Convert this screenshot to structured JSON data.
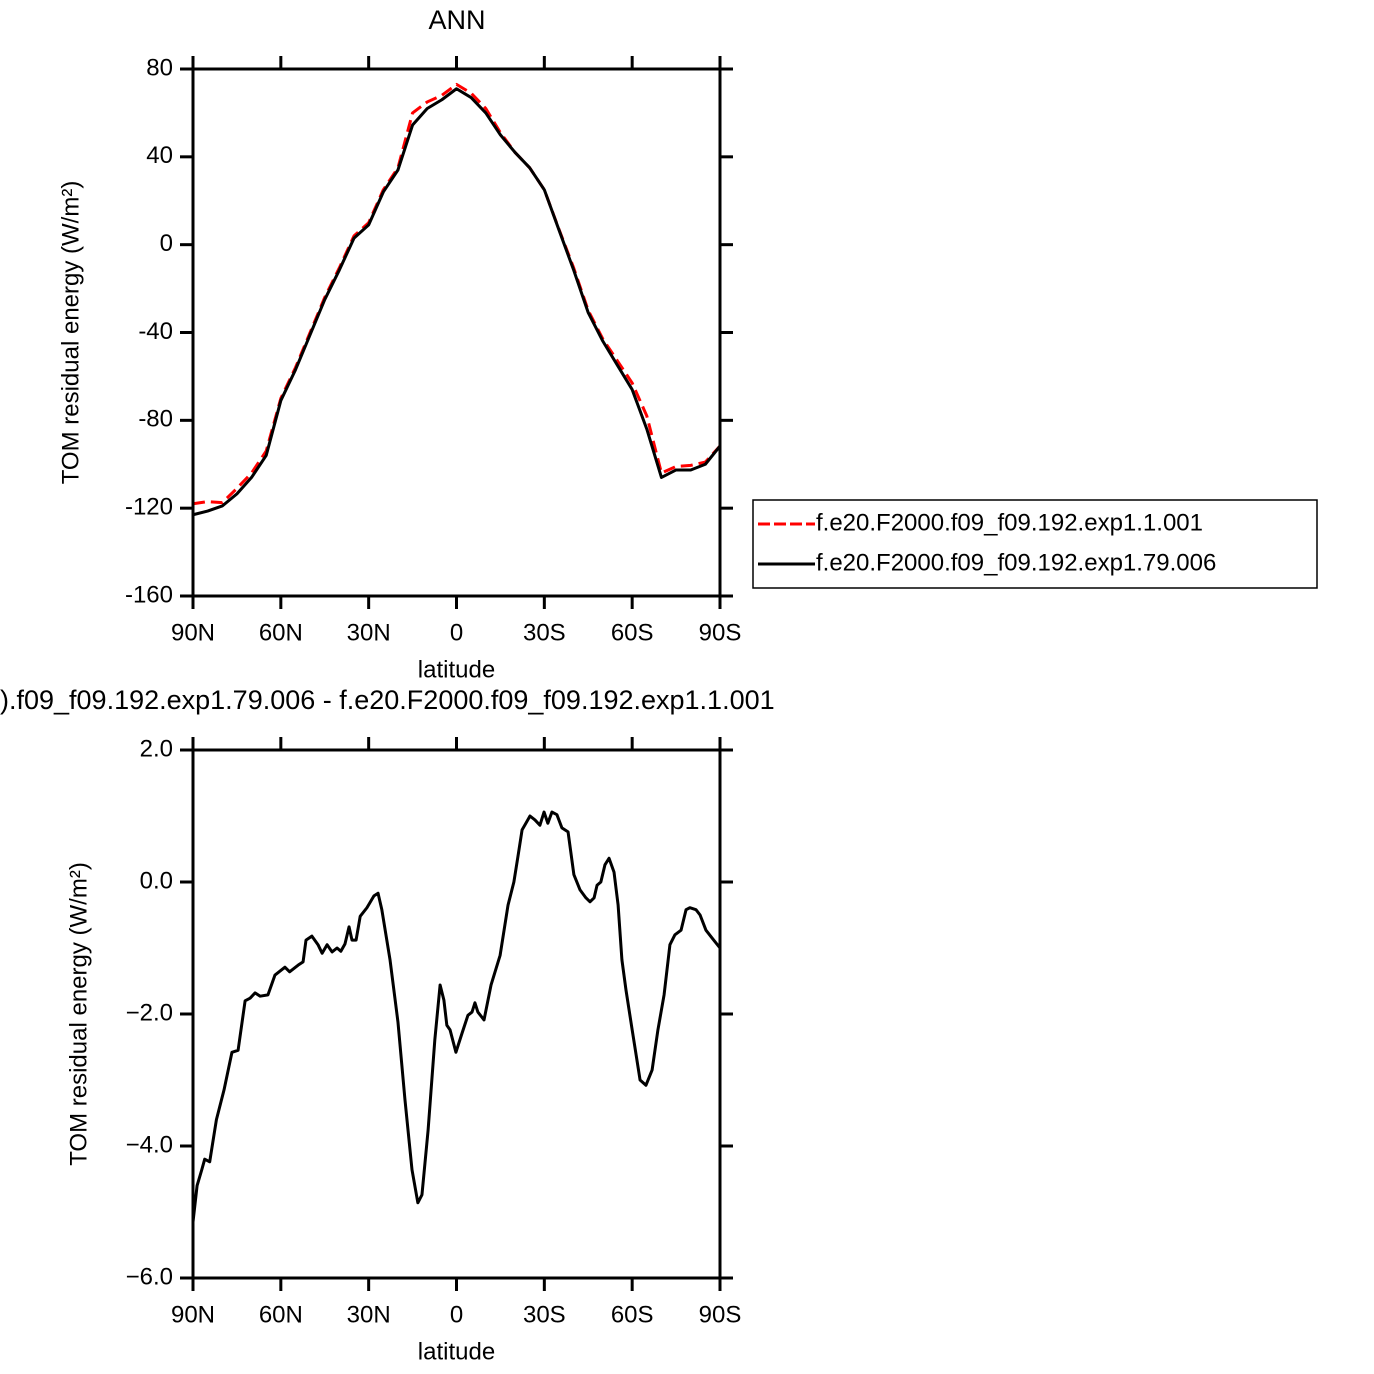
{
  "chart_data": [
    {
      "type": "line",
      "title": "ANN",
      "xlabel": "latitude",
      "ylabel": "TOM residual energy (W/m²)",
      "x": [
        90,
        85,
        80,
        75,
        70,
        65,
        60,
        55,
        50,
        45,
        40,
        35,
        30,
        25,
        20,
        15,
        10,
        5,
        0,
        -5,
        -10,
        -15,
        -20,
        -25,
        -30,
        -35,
        -40,
        -45,
        -50,
        -55,
        -60,
        -65,
        -70,
        -75,
        -80,
        -85,
        -90
      ],
      "series": [
        {
          "name": "f.e20.F2000.f09_f09.192.exp1.1.001",
          "color": "#ff0000",
          "dashed": true,
          "values": [
            -118,
            -117,
            -117.5,
            -111,
            -104,
            -94,
            -70,
            -56,
            -40,
            -24,
            -10.5,
            4,
            10,
            25,
            35,
            60,
            65,
            68,
            73,
            69,
            62,
            51,
            42,
            35,
            25,
            7,
            -10.5,
            -30,
            -43,
            -53,
            -63,
            -78,
            -104,
            -101,
            -100.5,
            -99,
            -91.7
          ]
        },
        {
          "name": "f.e20.F2000.f09_f09.192.exp1.79.006",
          "color": "#000000",
          "dashed": false,
          "values": [
            -123,
            -121.3,
            -119,
            -113.5,
            -106,
            -96,
            -71,
            -57,
            -41,
            -25,
            -11.5,
            3,
            9,
            24,
            34,
            54.5,
            62,
            66,
            71,
            67,
            60,
            50,
            42,
            35,
            25,
            6.7,
            -11.5,
            -31,
            -44,
            -55,
            -66,
            -84,
            -106,
            -102.6,
            -102.6,
            -100,
            -91.7
          ]
        }
      ],
      "xlim": [
        90,
        -90
      ],
      "xticks": [
        {
          "value": 90,
          "label": "90N"
        },
        {
          "value": 60,
          "label": "60N"
        },
        {
          "value": 30,
          "label": "30N"
        },
        0,
        {
          "value": -30,
          "label": "30S"
        },
        {
          "value": -60,
          "label": "60S"
        },
        {
          "value": -90,
          "label": "90S"
        }
      ],
      "ylim": [
        -160,
        80
      ],
      "yticks": [
        80,
        40,
        0,
        -40,
        -80,
        -120,
        -160
      ],
      "legend": "right"
    },
    {
      "type": "line",
      "title": ").f09_f09.192.exp1.79.006 - f.e20.F2000.f09_f09.192.exp1.1.001",
      "xlabel": "latitude",
      "ylabel": "TOM residual energy (W/m²)",
      "x": [
        90,
        88.6,
        87,
        86,
        84.3,
        82,
        79.4,
        76.7,
        74.6,
        72.2,
        70.5,
        68.8,
        67.1,
        64.4,
        62,
        58.6,
        57,
        54.1,
        52.4,
        51.4,
        49.4,
        47.3,
        45.9,
        44.2,
        42.5,
        40.8,
        39.5,
        38.1,
        36.7,
        35.7,
        34.3,
        32.9,
        30.6,
        28.2,
        26.8,
        25.5,
        22.7,
        20,
        17.6,
        15.2,
        13.2,
        11.8,
        9.7,
        7.4,
        5.6,
        4.3,
        3.3,
        2.2,
        0.2,
        -1.9,
        -3.9,
        -5.3,
        -6.3,
        -7.3,
        -9.4,
        -11.8,
        -14.9,
        -17.6,
        -19.6,
        -21,
        -22.4,
        -23.7,
        -25.1,
        -26.8,
        -28.5,
        -29.9,
        -31.2,
        -32.6,
        -34.3,
        -36,
        -38.1,
        -40.1,
        -42.2,
        -44.2,
        -45.6,
        -47,
        -48,
        -49.3,
        -50.7,
        -52.1,
        -53.8,
        -55.2,
        -56.5,
        -57.9,
        -60,
        -62.7,
        -64.7,
        -66.8,
        -68.8,
        -70.9,
        -72.9,
        -74.6,
        -76.7,
        -78.4,
        -79.7,
        -81.8,
        -83.2,
        -85.2,
        -87.3,
        -90
      ],
      "series": [
        {
          "color": "#000000",
          "dashed": false,
          "values": [
            -5.15,
            -4.6,
            -4.36,
            -4.2,
            -4.24,
            -3.6,
            -3.15,
            -2.58,
            -2.55,
            -1.8,
            -1.76,
            -1.68,
            -1.73,
            -1.71,
            -1.41,
            -1.29,
            -1.36,
            -1.26,
            -1.21,
            -0.88,
            -0.82,
            -0.95,
            -1.08,
            -0.95,
            -1.06,
            -1.0,
            -1.05,
            -0.94,
            -0.68,
            -0.88,
            -0.88,
            -0.52,
            -0.39,
            -0.21,
            -0.17,
            -0.42,
            -1.18,
            -2.12,
            -3.3,
            -4.36,
            -4.86,
            -4.74,
            -3.76,
            -2.39,
            -1.56,
            -1.79,
            -2.17,
            -2.24,
            -2.58,
            -2.29,
            -2.02,
            -1.97,
            -1.83,
            -1.97,
            -2.09,
            -1.56,
            -1.11,
            -0.35,
            0,
            0.39,
            0.79,
            0.89,
            1.0,
            0.94,
            0.86,
            1.06,
            0.89,
            1.06,
            1.02,
            0.82,
            0.76,
            0.11,
            -0.12,
            -0.24,
            -0.3,
            -0.24,
            -0.05,
            0,
            0.26,
            0.36,
            0.15,
            -0.35,
            -1.18,
            -1.64,
            -2.24,
            -3.0,
            -3.08,
            -2.85,
            -2.24,
            -1.71,
            -0.95,
            -0.8,
            -0.73,
            -0.42,
            -0.39,
            -0.42,
            -0.5,
            -0.73,
            -0.85,
            -1.0
          ]
        }
      ],
      "xlim": [
        90,
        -90
      ],
      "xticks": [
        {
          "value": 90,
          "label": "90N"
        },
        {
          "value": 60,
          "label": "60N"
        },
        {
          "value": 30,
          "label": "30N"
        },
        0,
        {
          "value": -30,
          "label": "30S"
        },
        {
          "value": -60,
          "label": "60S"
        },
        {
          "value": -90,
          "label": "90S"
        }
      ],
      "ylim": [
        -6,
        2
      ],
      "yticks": [
        {
          "value": 2,
          "label": "2.0"
        },
        {
          "value": 0,
          "label": "0.0"
        },
        {
          "value": -2,
          "label": "−2.0"
        },
        {
          "value": -4,
          "label": "−4.0"
        },
        {
          "value": -6,
          "label": "−6.0"
        }
      ]
    }
  ]
}
